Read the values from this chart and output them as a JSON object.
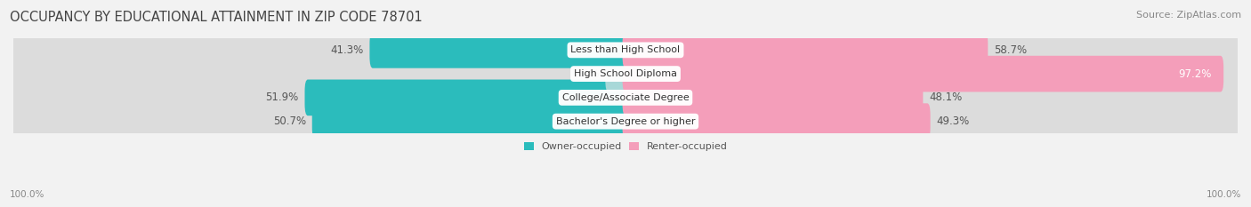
{
  "title": "OCCUPANCY BY EDUCATIONAL ATTAINMENT IN ZIP CODE 78701",
  "source": "Source: ZipAtlas.com",
  "categories": [
    "Bachelor's Degree or higher",
    "College/Associate Degree",
    "High School Diploma",
    "Less than High School"
  ],
  "owner_pct": [
    50.7,
    51.9,
    2.8,
    41.3
  ],
  "renter_pct": [
    49.3,
    48.1,
    97.2,
    58.7
  ],
  "owner_color": "#2BBCBC",
  "renter_color": "#F49EBA",
  "owner_light_color": "#A8D8D8",
  "bg_color": "#F2F2F2",
  "bar_bg_color": "#DCDCDC",
  "title_fontsize": 10.5,
  "label_fontsize": 8.5,
  "source_fontsize": 8,
  "bar_height": 0.52,
  "figsize": [
    14.06,
    2.33
  ],
  "dpi": 100,
  "axis_label_left": "100.0%",
  "axis_label_right": "100.0%"
}
